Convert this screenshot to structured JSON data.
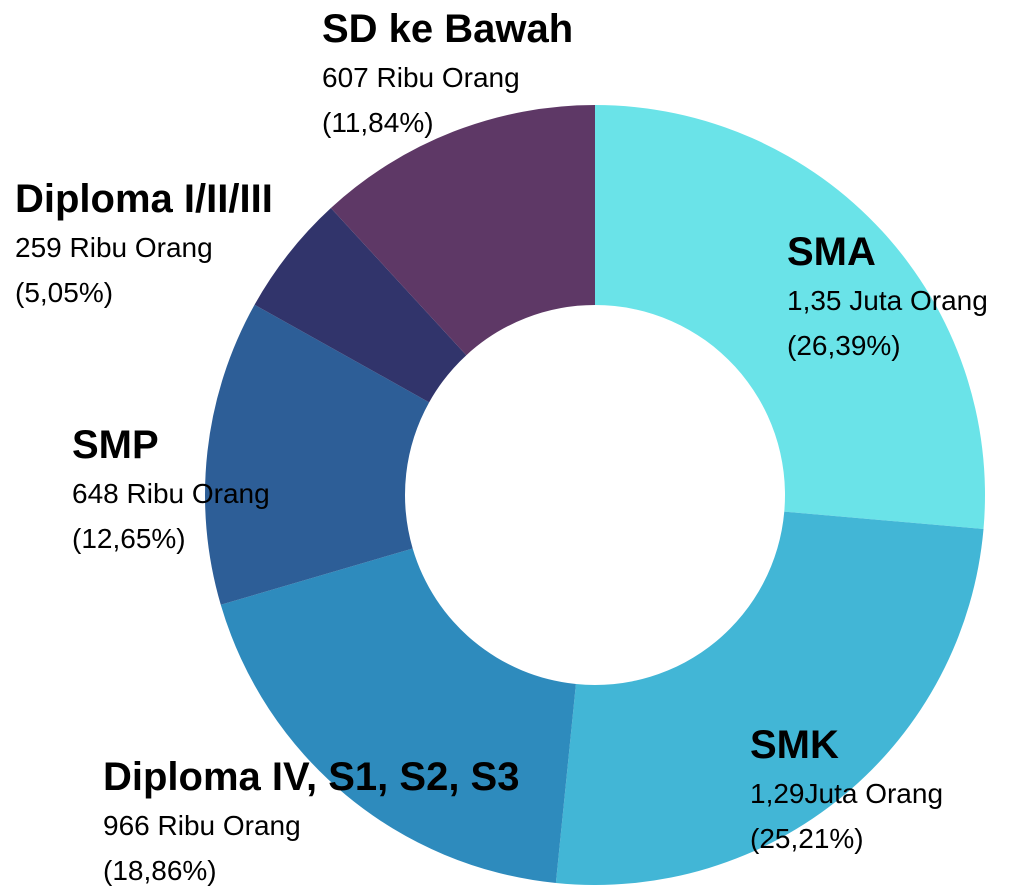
{
  "chart_data": {
    "type": "donut",
    "categories": [
      "SMA",
      "SMK",
      "Diploma IV, S1, S2, S3",
      "SMP",
      "Diploma I/II/III",
      "SD ke Bawah"
    ],
    "values": [
      26.39,
      25.21,
      18.86,
      12.65,
      5.05,
      11.84
    ],
    "value_labels": [
      "(26,39%)",
      "(25,21%)",
      "(18,86%)",
      "(12,65%)",
      "(5,05%)",
      "(11,84%)"
    ],
    "count_labels": [
      "1,35 Juta Orang",
      "1,29Juta Orang",
      "966 Ribu Orang",
      "648 Ribu Orang",
      "259 Ribu Orang",
      "607 Ribu Orang"
    ],
    "colors": [
      "#6ae3e8",
      "#42b6d6",
      "#2e8bbd",
      "#2d5e97",
      "#31346b",
      "#5e3866"
    ]
  }
}
